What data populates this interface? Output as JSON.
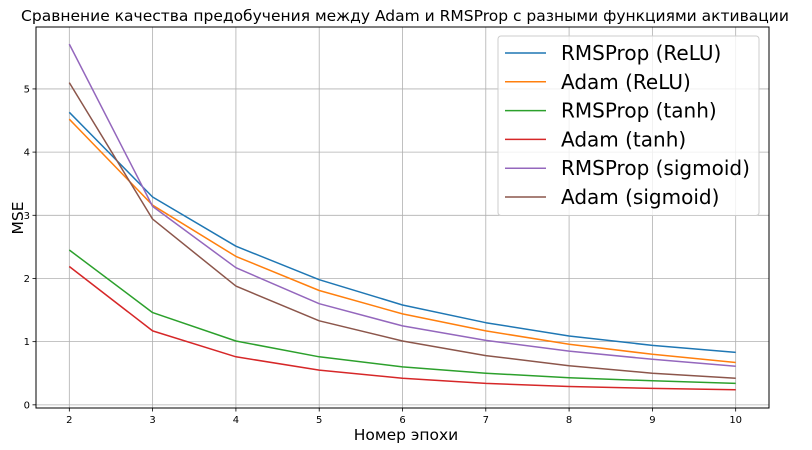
{
  "chart_data": {
    "type": "line",
    "title": "Сравнение качества предобучения между Adam и RMSProp с разными функциями активации",
    "xlabel": "Номер эпохи",
    "ylabel": "MSE",
    "xlim": [
      1.6,
      10.4
    ],
    "ylim": [
      -0.05,
      5.98
    ],
    "xticks": [
      "2",
      "3",
      "4",
      "5",
      "6",
      "7",
      "8",
      "9",
      "10"
    ],
    "yticks": [
      "0",
      "1",
      "2",
      "3",
      "4",
      "5"
    ],
    "grid": true,
    "legend_position": "top-right",
    "x": [
      2,
      3,
      4,
      5,
      6,
      7,
      8,
      9,
      10
    ],
    "series": [
      {
        "name": "RMSProp (ReLU)",
        "color": "#1f77b4",
        "values": [
          4.63,
          3.29,
          2.51,
          1.98,
          1.58,
          1.3,
          1.09,
          0.94,
          0.83
        ]
      },
      {
        "name": "Adam (ReLU)",
        "color": "#ff7f0e",
        "values": [
          4.52,
          3.16,
          2.35,
          1.81,
          1.44,
          1.17,
          0.96,
          0.8,
          0.67
        ]
      },
      {
        "name": "RMSProp (tanh)",
        "color": "#2ca02c",
        "values": [
          2.45,
          1.46,
          1.01,
          0.76,
          0.6,
          0.5,
          0.43,
          0.38,
          0.34
        ]
      },
      {
        "name": "Adam (tanh)",
        "color": "#d62728",
        "values": [
          2.19,
          1.17,
          0.76,
          0.55,
          0.42,
          0.34,
          0.29,
          0.26,
          0.24
        ]
      },
      {
        "name": "RMSProp (sigmoid)",
        "color": "#9467bd",
        "values": [
          5.71,
          3.14,
          2.17,
          1.6,
          1.25,
          1.02,
          0.85,
          0.72,
          0.61
        ]
      },
      {
        "name": "Adam (sigmoid)",
        "color": "#8c564b",
        "values": [
          5.1,
          2.94,
          1.88,
          1.33,
          1.01,
          0.78,
          0.62,
          0.5,
          0.42
        ]
      }
    ]
  }
}
